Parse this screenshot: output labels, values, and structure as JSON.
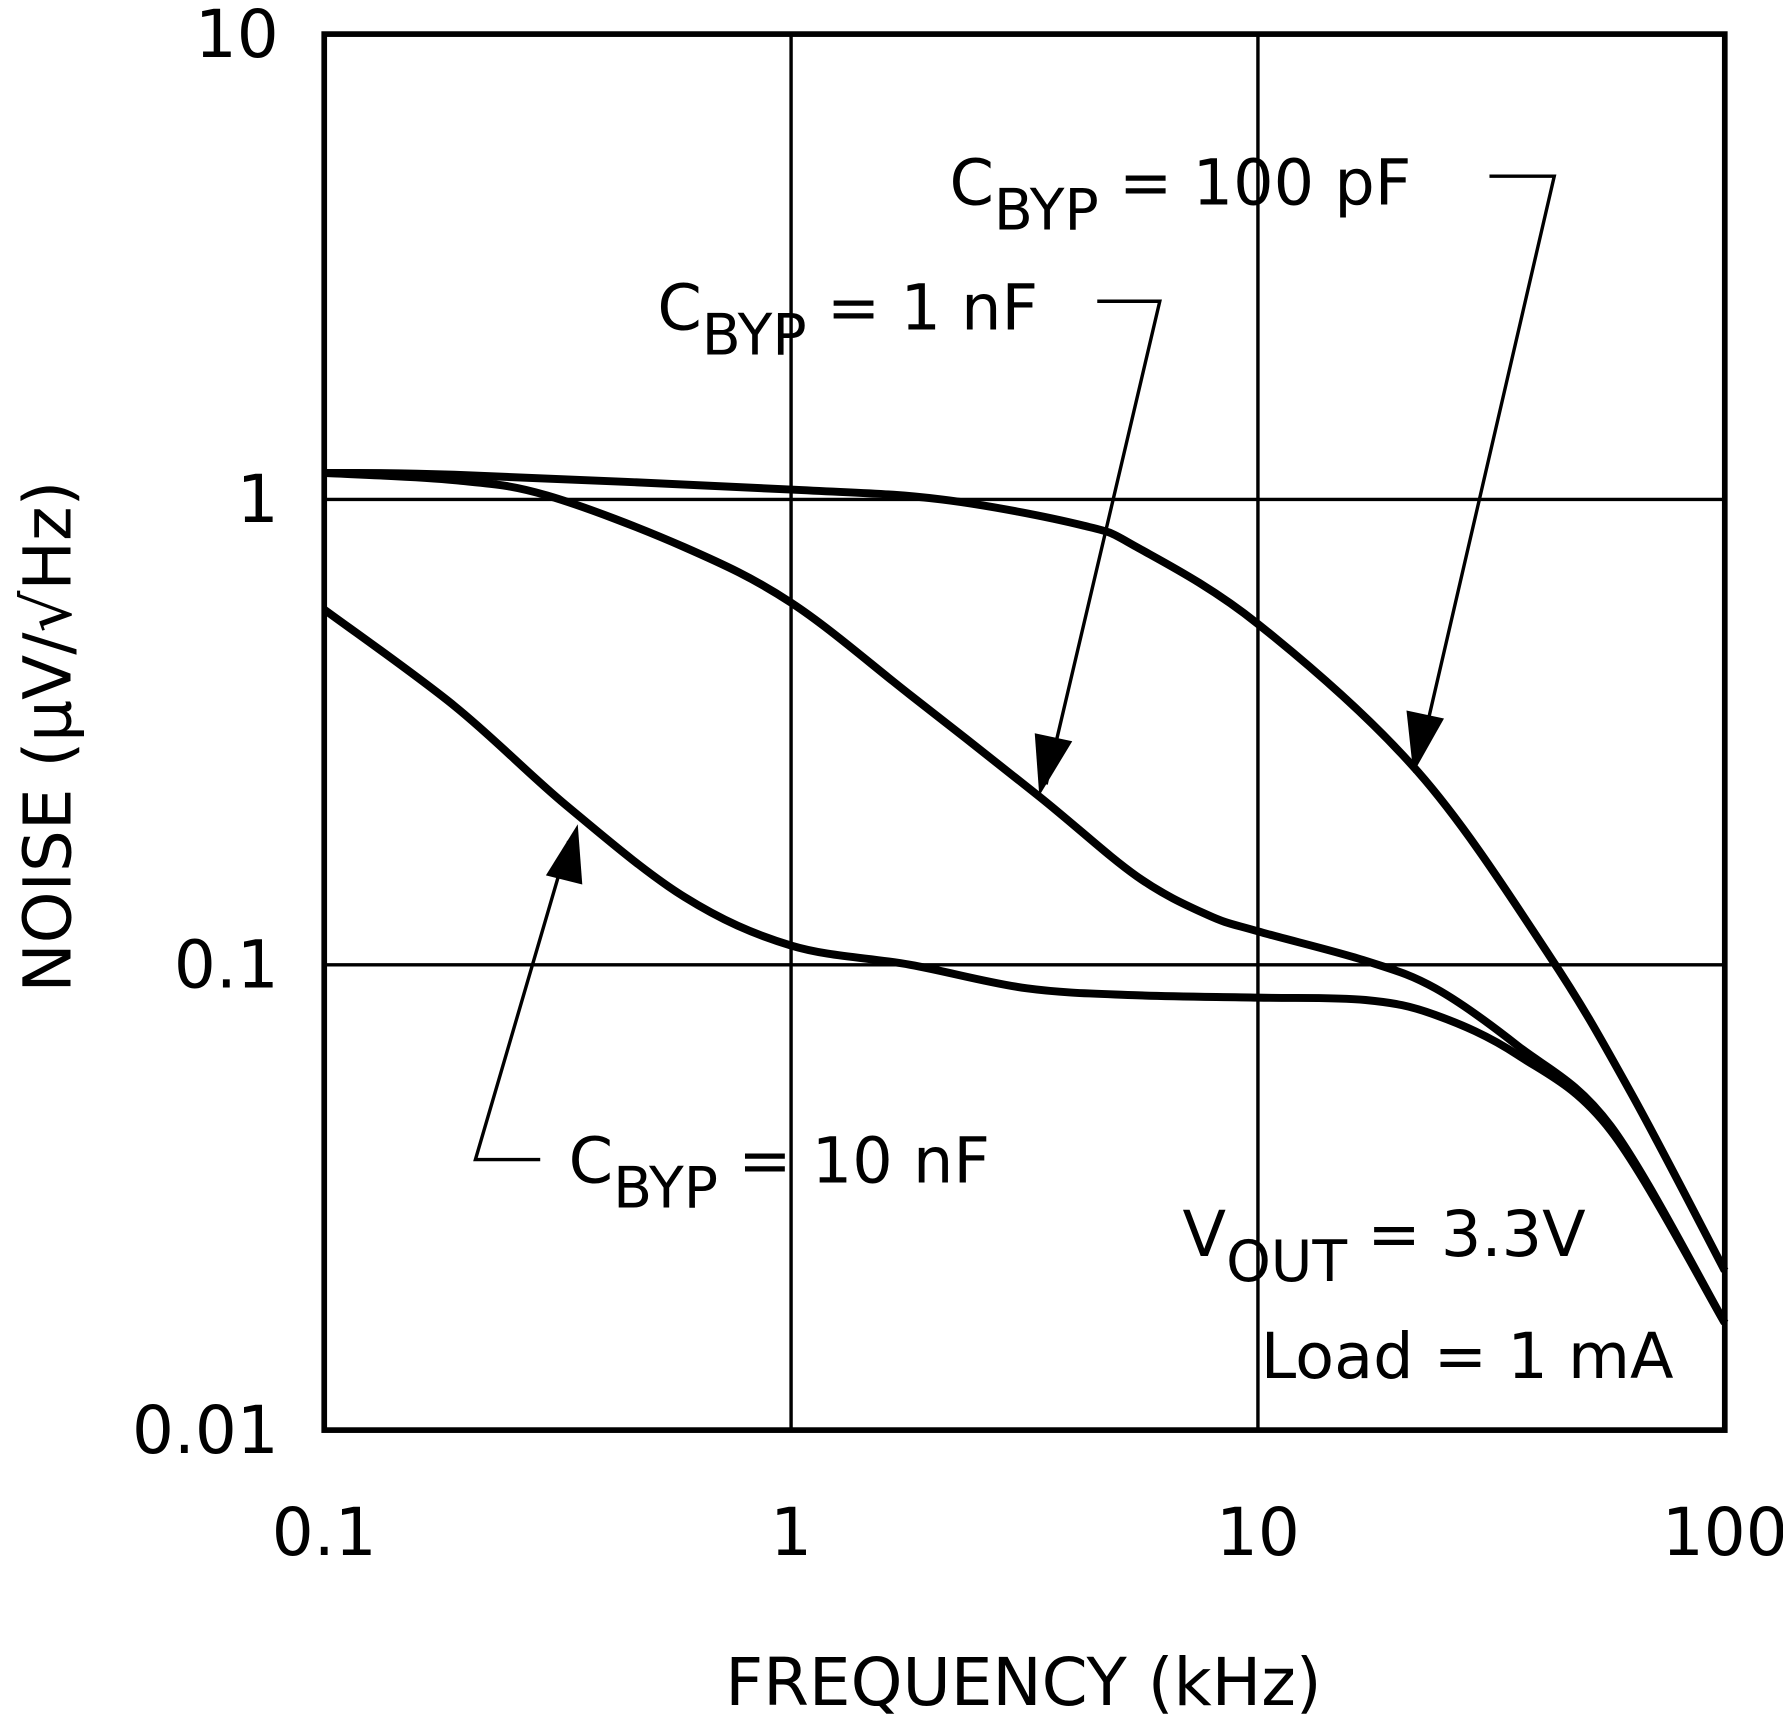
{
  "chart_data": {
    "type": "line",
    "title": "",
    "xlabel": "FREQUENCY (kHz)",
    "ylabel": "NOISE (μV/√Hz)",
    "x_scale": "log",
    "y_scale": "log",
    "xlim": [
      0.1,
      100
    ],
    "ylim": [
      0.01,
      10
    ],
    "x_ticks": [
      "0.1",
      "1",
      "10",
      "100"
    ],
    "y_ticks": [
      "0.01",
      "0.1",
      "1",
      "10"
    ],
    "grid": true,
    "series": [
      {
        "name": "CBYP = 100 pF",
        "x": [
          0.1,
          0.19,
          1.0,
          2.1,
          4.2,
          5.5,
          10,
          22,
          42,
          63,
          100
        ],
        "y": [
          1.14,
          1.13,
          1.05,
          1.0,
          0.88,
          0.79,
          0.54,
          0.26,
          0.105,
          0.053,
          0.022
        ]
      },
      {
        "name": "CBYP = 1 nF",
        "x": [
          0.1,
          0.19,
          0.3,
          0.59,
          1.0,
          1.8,
          3.4,
          5.5,
          7.8,
          10,
          17,
          24,
          36,
          57,
          100
        ],
        "y": [
          1.14,
          1.1,
          1.02,
          0.79,
          0.6,
          0.38,
          0.23,
          0.155,
          0.128,
          0.118,
          0.102,
          0.089,
          0.067,
          0.045,
          0.017
        ]
      },
      {
        "name": "CBYP = 10 nF",
        "x": [
          0.1,
          0.19,
          0.33,
          0.59,
          1.0,
          1.8,
          3.2,
          5.5,
          10,
          17,
          24,
          36,
          57,
          100
        ],
        "y": [
          0.58,
          0.36,
          0.22,
          0.14,
          0.11,
          0.1,
          0.089,
          0.086,
          0.085,
          0.084,
          0.078,
          0.064,
          0.044,
          0.017
        ]
      }
    ],
    "annotations": [
      {
        "main": "C",
        "sub": "BYP",
        "rest": " = 100 pF"
      },
      {
        "main": "C",
        "sub": "BYP",
        "rest": " = 1 nF"
      },
      {
        "main": "C",
        "sub": "BYP",
        "rest": " = 10 nF"
      },
      {
        "main": "V",
        "sub": "OUT",
        "rest": " = 3.3V"
      },
      {
        "main": "Load = 1 mA",
        "sub": "",
        "rest": ""
      }
    ]
  }
}
